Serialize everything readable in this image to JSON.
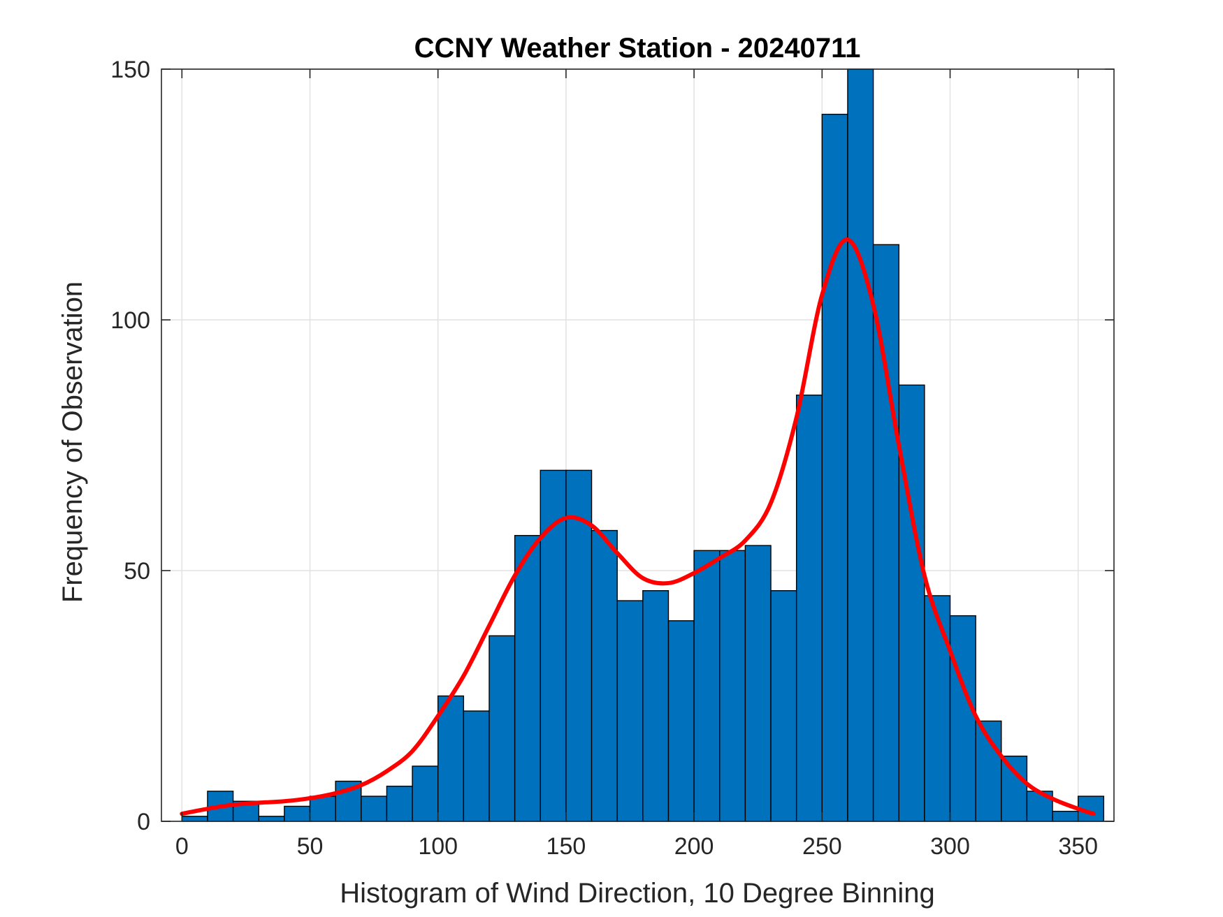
{
  "chart_data": {
    "type": "bar",
    "title": "CCNY Weather Station - 20240711",
    "xlabel": "Histogram of Wind Direction, 10 Degree Binning",
    "ylabel": "Frequency of Observation",
    "xlim": [
      -8,
      364
    ],
    "ylim": [
      0,
      150
    ],
    "xticks": [
      0,
      50,
      100,
      150,
      200,
      250,
      300,
      350
    ],
    "xtick_labels": [
      "0",
      "50",
      "100",
      "150",
      "200",
      "250",
      "300",
      "350"
    ],
    "yticks": [
      0,
      50,
      100,
      150
    ],
    "ytick_labels": [
      "0",
      "50",
      "100",
      "150"
    ],
    "grid": true,
    "bar_color": "#0072BD",
    "bin_width": 10,
    "bin_edges": [
      0,
      10,
      20,
      30,
      40,
      50,
      60,
      70,
      80,
      90,
      100,
      110,
      120,
      130,
      140,
      150,
      160,
      170,
      180,
      190,
      200,
      210,
      220,
      230,
      240,
      250,
      260,
      270,
      280,
      290,
      300,
      310,
      320,
      330,
      340,
      350,
      360
    ],
    "values": [
      1,
      6,
      4,
      1,
      3,
      5,
      8,
      5,
      7,
      11,
      25,
      22,
      37,
      57,
      70,
      70,
      58,
      44,
      46,
      40,
      54,
      54,
      55,
      46,
      85,
      141,
      150,
      115,
      87,
      45,
      41,
      20,
      13,
      6,
      2,
      5
    ],
    "fit_line": {
      "name": "fitted distribution",
      "color": "#FF0000",
      "x": [
        0,
        10,
        20,
        30,
        40,
        50,
        60,
        70,
        80,
        90,
        100,
        110,
        120,
        130,
        140,
        150,
        160,
        170,
        180,
        190,
        200,
        210,
        220,
        230,
        240,
        250,
        260,
        270,
        280,
        290,
        300,
        310,
        320,
        330,
        340,
        350,
        356
      ],
      "y": [
        1.5,
        2.5,
        3.3,
        3.7,
        4.0,
        4.6,
        5.6,
        7.2,
        10,
        14,
        21,
        29,
        39,
        49,
        56.5,
        60.5,
        59,
        53.5,
        48.5,
        47.5,
        49.5,
        52.5,
        56,
        63.5,
        80.5,
        105,
        116,
        103,
        75,
        49,
        34,
        21,
        13,
        7.5,
        4.5,
        2.5,
        1.5
      ]
    }
  }
}
